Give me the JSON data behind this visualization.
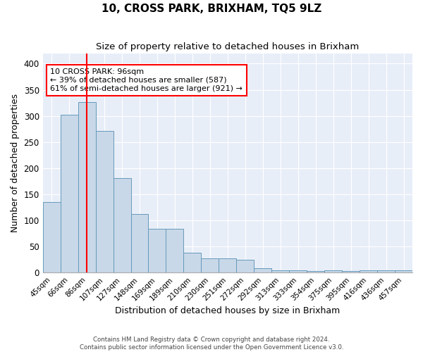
{
  "title": "10, CROSS PARK, BRIXHAM, TQ5 9LZ",
  "subtitle": "Size of property relative to detached houses in Brixham",
  "xlabel": "Distribution of detached houses by size in Brixham",
  "ylabel": "Number of detached properties",
  "bar_values": [
    135,
    302,
    327,
    271,
    181,
    112,
    84,
    84,
    38,
    27,
    27,
    25,
    9,
    4,
    5,
    3,
    5,
    3,
    5,
    5,
    5
  ],
  "bar_labels": [
    "45sqm",
    "66sqm",
    "86sqm",
    "107sqm",
    "127sqm",
    "148sqm",
    "169sqm",
    "189sqm",
    "210sqm",
    "230sqm",
    "251sqm",
    "272sqm",
    "292sqm",
    "313sqm",
    "333sqm",
    "354sqm",
    "375sqm",
    "395sqm",
    "416sqm",
    "436sqm",
    "457sqm"
  ],
  "bar_color": "#c8d8e8",
  "bar_edge_color": "#6699bb",
  "red_line_x": 2.0,
  "annotation_text": "10 CROSS PARK: 96sqm\n← 39% of detached houses are smaller (587)\n61% of semi-detached houses are larger (921) →",
  "annotation_box_color": "white",
  "annotation_box_edge": "red",
  "ylim": [
    0,
    420
  ],
  "yticks": [
    0,
    50,
    100,
    150,
    200,
    250,
    300,
    350,
    400
  ],
  "bg_color": "#e8eef8",
  "footer_line1": "Contains HM Land Registry data © Crown copyright and database right 2024.",
  "footer_line2": "Contains public sector information licensed under the Open Government Licence v3.0.",
  "title_fontsize": 11,
  "subtitle_fontsize": 9.5,
  "xlabel_fontsize": 9,
  "ylabel_fontsize": 9
}
